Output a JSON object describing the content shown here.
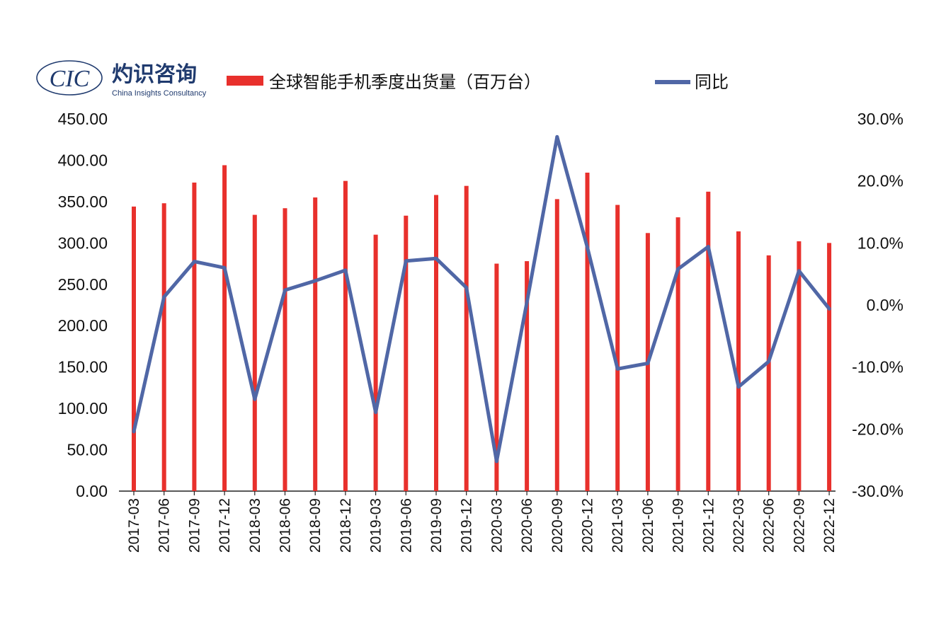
{
  "logo": {
    "mark": "CIC",
    "name_cn": "灼识咨询",
    "name_en": "China Insights Consultancy"
  },
  "legend": {
    "bar_label": "全球智能手机季度出货量（百万台）",
    "line_label": "同比"
  },
  "colors": {
    "bar": "#e8302c",
    "line": "#5067a6",
    "axis": "#222222",
    "logo": "#1f3a6e"
  },
  "chart_data": {
    "type": "bar+line",
    "categories": [
      "2017-03",
      "2017-06",
      "2017-09",
      "2017-12",
      "2018-03",
      "2018-06",
      "2018-09",
      "2018-12",
      "2019-03",
      "2019-06",
      "2019-09",
      "2019-12",
      "2020-03",
      "2020-06",
      "2020-09",
      "2020-12",
      "2021-03",
      "2021-06",
      "2021-09",
      "2021-12",
      "2022-03",
      "2022-06",
      "2022-09",
      "2022-12"
    ],
    "series": [
      {
        "name": "全球智能手机季度出货量（百万台）",
        "type": "bar",
        "axis": "left",
        "values": [
          344,
          348,
          373,
          394,
          334,
          342,
          355,
          375,
          310,
          333,
          358,
          369,
          275,
          278,
          353,
          385,
          346,
          312,
          331,
          362,
          314,
          285,
          302,
          300
        ]
      },
      {
        "name": "同比",
        "type": "line",
        "axis": "right",
        "values": [
          -0.204,
          0.013,
          0.07,
          0.06,
          -0.152,
          0.024,
          0.039,
          0.056,
          -0.173,
          0.071,
          0.075,
          0.028,
          -0.252,
          0.004,
          0.271,
          0.093,
          -0.103,
          -0.094,
          0.058,
          0.094,
          -0.132,
          -0.091,
          0.055,
          -0.006
        ]
      }
    ],
    "y_left": {
      "min": 0,
      "max": 450,
      "step": 50,
      "ticks": [
        "0.00",
        "50.00",
        "100.00",
        "150.00",
        "200.00",
        "250.00",
        "300.00",
        "350.00",
        "400.00",
        "450.00"
      ]
    },
    "y_right": {
      "min": -0.3,
      "max": 0.3,
      "step": 0.1,
      "ticks": [
        "-30.0%",
        "-20.0%",
        "-10.0%",
        "0.0%",
        "10.0%",
        "20.0%",
        "30.0%"
      ]
    },
    "grid": false,
    "legend_position": "top"
  }
}
